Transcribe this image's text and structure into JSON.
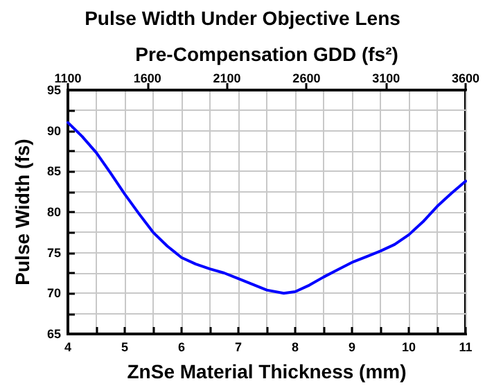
{
  "chart_data": {
    "type": "line",
    "title": "Pulse Width Under Objective Lens",
    "x2label": "Pre-Compensation GDD (fs²)",
    "xlabel": "ZnSe Material Thickness (mm)",
    "ylabel": "Pulse Width (fs)",
    "x": [
      4,
      4.25,
      4.5,
      4.75,
      5,
      5.25,
      5.5,
      5.75,
      6,
      6.25,
      6.5,
      6.75,
      7,
      7.25,
      7.5,
      7.8,
      8,
      8.25,
      8.5,
      8.75,
      9,
      9.25,
      9.5,
      9.75,
      10,
      10.25,
      10.5,
      10.75,
      11
    ],
    "series": [
      {
        "color": "#0000ff",
        "values": [
          91,
          89.3,
          87.3,
          84.8,
          82.2,
          79.8,
          77.5,
          75.8,
          74.4,
          73.6,
          73,
          72.5,
          71.8,
          71.1,
          70.4,
          70,
          70.2,
          71,
          72,
          72.9,
          73.8,
          74.5,
          75.2,
          76,
          77.2,
          78.8,
          80.7,
          82.3,
          83.8
        ]
      }
    ],
    "xlim": [
      4,
      11
    ],
    "xticks": [
      4,
      {
        "value": 4.5,
        "label": null
      },
      5,
      {
        "value": 5.5,
        "label": null
      },
      6,
      {
        "value": 6.5,
        "label": null
      },
      7,
      {
        "value": 7.5,
        "label": null
      },
      8,
      {
        "value": 8.5,
        "label": null
      },
      9,
      {
        "value": 9.5,
        "label": null
      },
      10,
      {
        "value": 10.5,
        "label": null
      },
      11
    ],
    "ylim": [
      65,
      95
    ],
    "yticks": [
      65,
      {
        "value": 67.5,
        "label": null
      },
      70,
      {
        "value": 72.5,
        "label": null
      },
      75,
      {
        "value": 77.5,
        "label": null
      },
      80,
      {
        "value": 82.5,
        "label": null
      },
      85,
      {
        "value": 87.5,
        "label": null
      },
      90,
      {
        "value": 92.5,
        "label": null
      },
      95
    ],
    "x2lim": [
      1100,
      3600
    ],
    "x2ticks": [
      1100,
      1600,
      2100,
      2600,
      3100,
      3600
    ],
    "grid": true,
    "marker": "none",
    "line_style": "solid"
  }
}
